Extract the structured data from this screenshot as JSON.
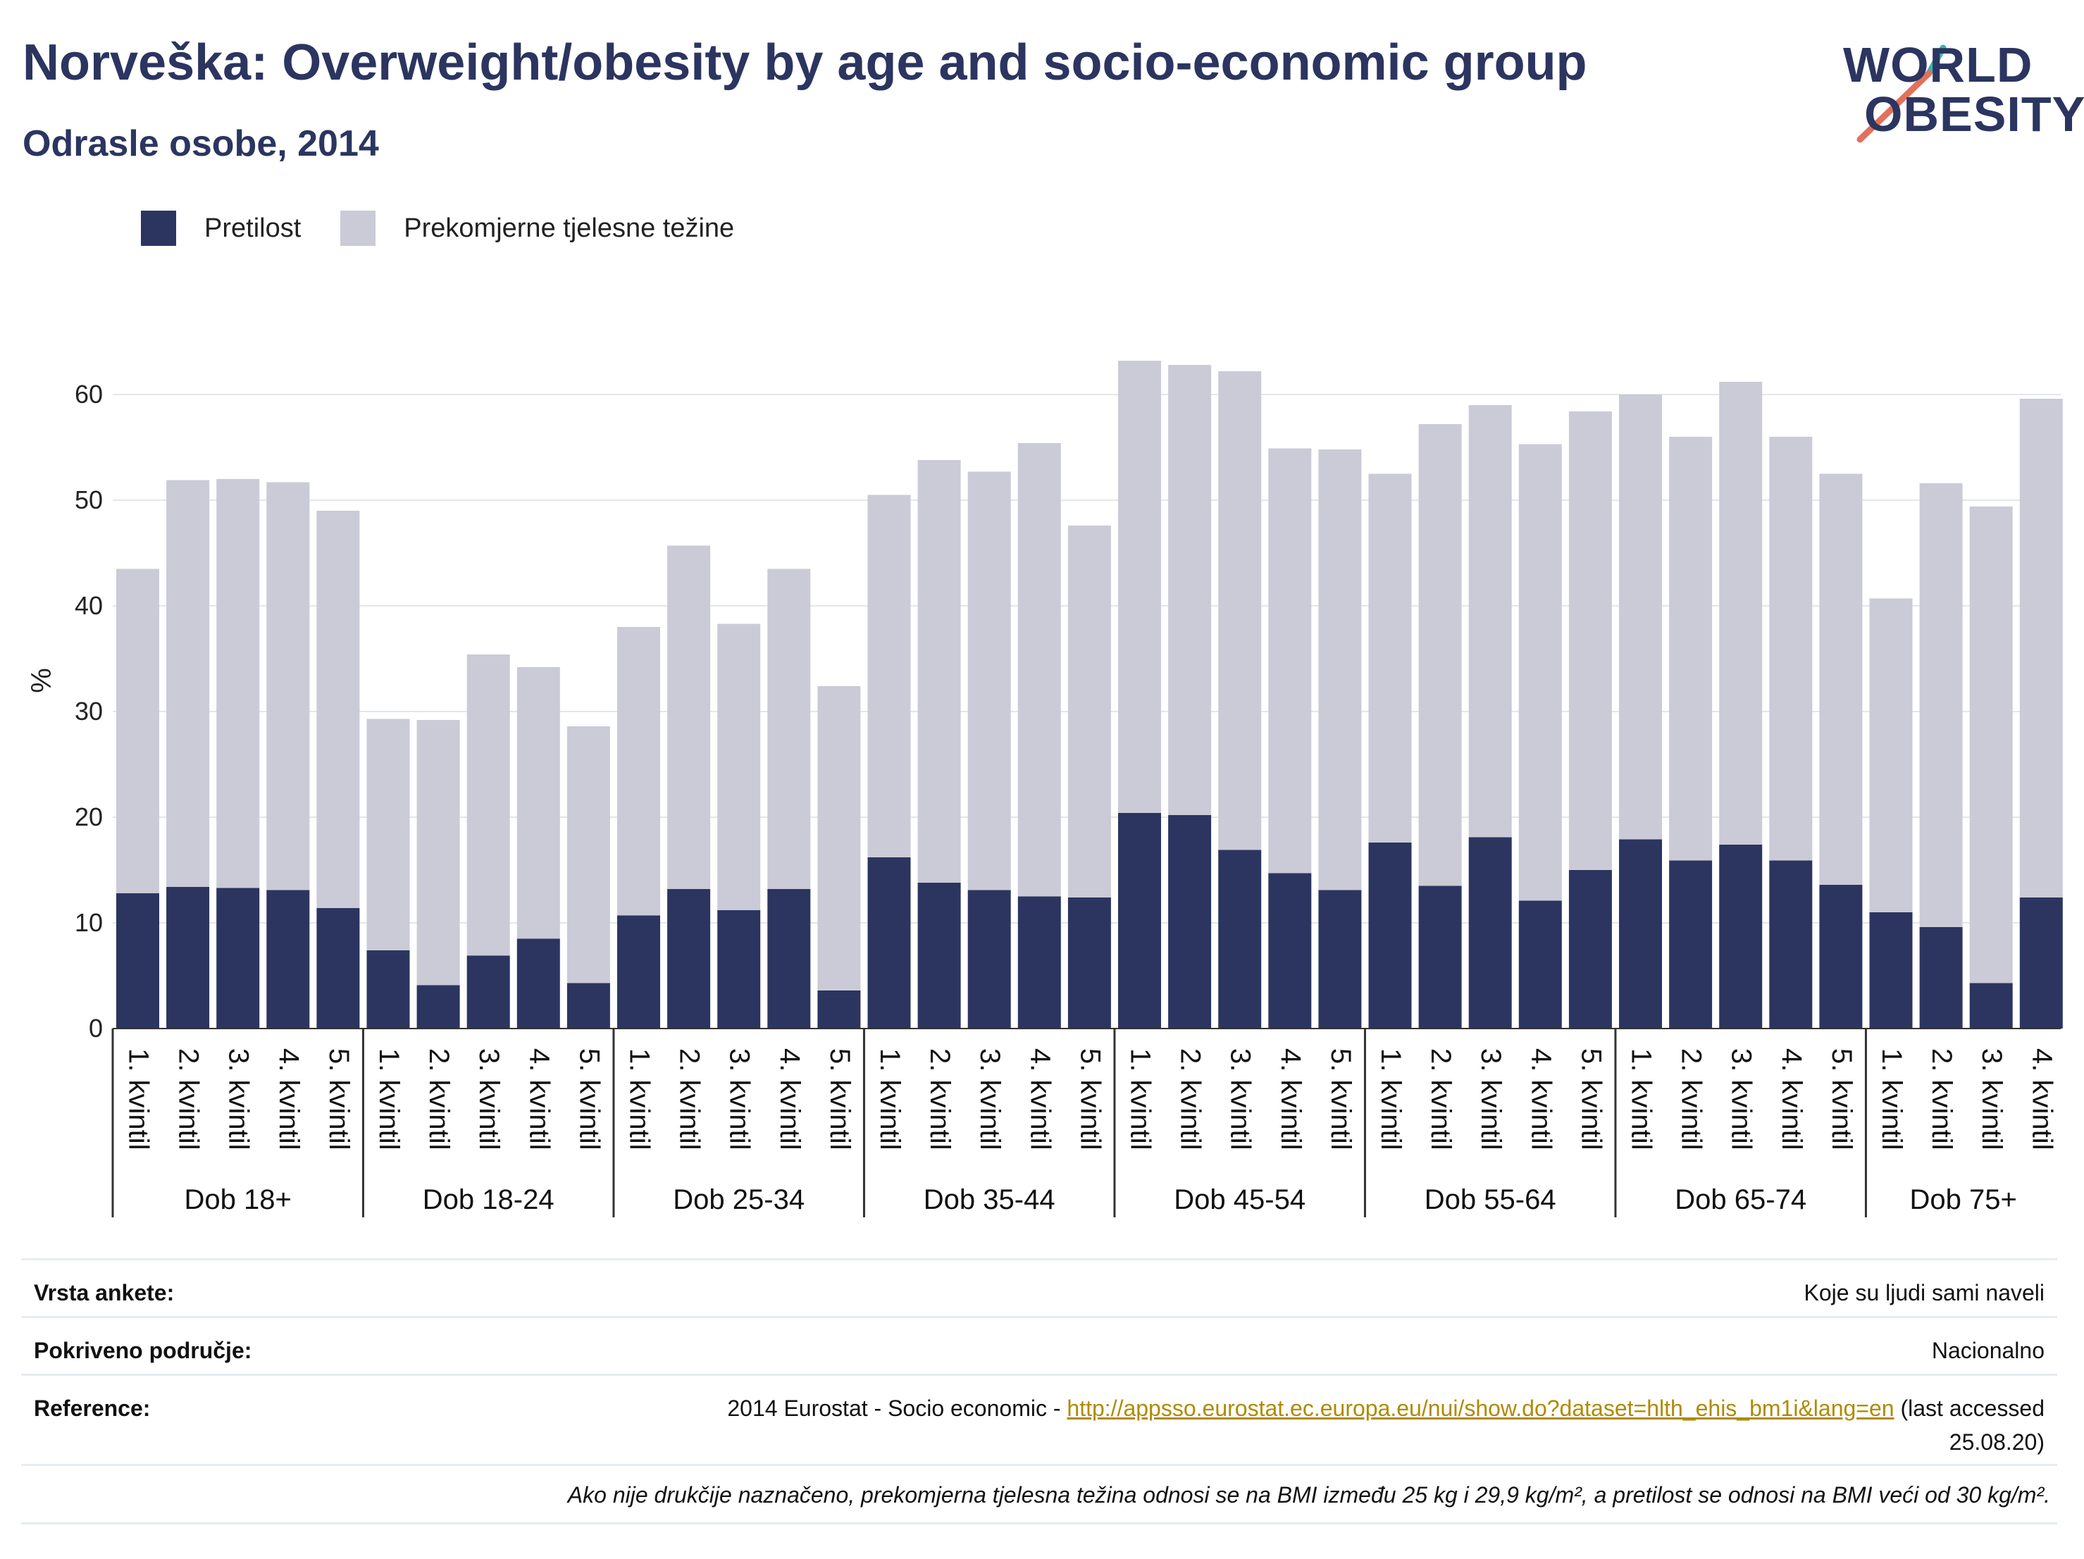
{
  "header": {
    "title": "Norveška: Overweight/obesity by age and socio-economic group",
    "subtitle": "Odrasle osobe, 2014"
  },
  "logo": {
    "line1": "WORLD",
    "line2": "OBESITY"
  },
  "legend": {
    "items": [
      {
        "label": "Pretilost",
        "color": "#2b3560"
      },
      {
        "label": "Prekomjerne tjelesne težine",
        "color": "#cacbd7"
      }
    ]
  },
  "chart_data": {
    "type": "bar",
    "stacked": true,
    "ylabel": "%",
    "ylim": [
      0,
      70
    ],
    "yticks": [
      0,
      10,
      20,
      30,
      40,
      50,
      60
    ],
    "grid": true,
    "legend_position": "top-left",
    "groups": [
      {
        "name": "Dob 18+",
        "categories": [
          "1. kvintil",
          "2. kvintil",
          "3. kvintil",
          "4. kvintil",
          "5. kvintil"
        ]
      },
      {
        "name": "Dob 18-24",
        "categories": [
          "1. kvintil",
          "2. kvintil",
          "3. kvintil",
          "4. kvintil",
          "5. kvintil"
        ]
      },
      {
        "name": "Dob 25-34",
        "categories": [
          "1. kvintil",
          "2. kvintil",
          "3. kvintil",
          "4. kvintil",
          "5. kvintil"
        ]
      },
      {
        "name": "Dob 35-44",
        "categories": [
          "1. kvintil",
          "2. kvintil",
          "3. kvintil",
          "4. kvintil",
          "5. kvintil"
        ]
      },
      {
        "name": "Dob 45-54",
        "categories": [
          "1. kvintil",
          "2. kvintil",
          "3. kvintil",
          "4. kvintil",
          "5. kvintil"
        ]
      },
      {
        "name": "Dob 55-64",
        "categories": [
          "1. kvintil",
          "2. kvintil",
          "3. kvintil",
          "4. kvintil",
          "5. kvintil"
        ]
      },
      {
        "name": "Dob 65-74",
        "categories": [
          "1. kvintil",
          "2. kvintil",
          "3. kvintil",
          "4. kvintil",
          "5. kvintil"
        ]
      },
      {
        "name": "Dob 75+",
        "categories": [
          "1. kvintil",
          "2. kvintil",
          "3. kvintil",
          "4. kvintil"
        ]
      }
    ],
    "series": [
      {
        "name": "Pretilost",
        "color": "#2b3560",
        "values": [
          12.8,
          13.4,
          13.3,
          13.1,
          11.4,
          7.4,
          4.1,
          6.9,
          8.5,
          4.3,
          10.7,
          13.2,
          11.2,
          13.2,
          3.6,
          16.2,
          13.8,
          13.1,
          12.5,
          12.4,
          20.4,
          20.2,
          16.9,
          14.7,
          13.1,
          17.6,
          13.5,
          18.1,
          12.1,
          15.0,
          17.9,
          15.9,
          17.4,
          15.9,
          13.6,
          11.0,
          9.6,
          4.3,
          12.4
        ]
      },
      {
        "name": "Prekomjerne tjelesne težine",
        "color": "#cacbd7",
        "values": [
          30.7,
          38.5,
          38.7,
          38.6,
          37.6,
          21.9,
          25.1,
          28.5,
          25.7,
          24.3,
          27.3,
          32.5,
          27.1,
          30.3,
          28.8,
          34.3,
          40.0,
          39.6,
          42.9,
          35.2,
          42.8,
          42.6,
          45.3,
          40.2,
          41.7,
          34.9,
          43.7,
          40.9,
          43.2,
          43.4,
          42.1,
          40.1,
          43.8,
          40.1,
          38.9,
          29.7,
          42.0,
          45.1,
          47.2
        ]
      }
    ]
  },
  "info": {
    "rows": [
      {
        "key": "Vrsta ankete:",
        "value": "Koje su ljudi sami naveli"
      },
      {
        "key": "Pokriveno područje:",
        "value": "Nacionalno"
      }
    ],
    "reference": {
      "key": "Reference:",
      "prefix": "2014 Eurostat - Socio economic - ",
      "link": "http://appsso.eurostat.ec.europa.eu/nui/show.do?dataset=hlth_ehis_bm1i&lang=en",
      "suffix_line1": " (last accessed",
      "suffix_line2": "25.08.20)"
    },
    "note": "Ako nije drukčije naznačeno, prekomjerna tjelesna težina odnosi se na BMI između 25 kg i 29,9 kg/m², a pretilost se odnosi na BMI veći od 30 kg/m²."
  }
}
